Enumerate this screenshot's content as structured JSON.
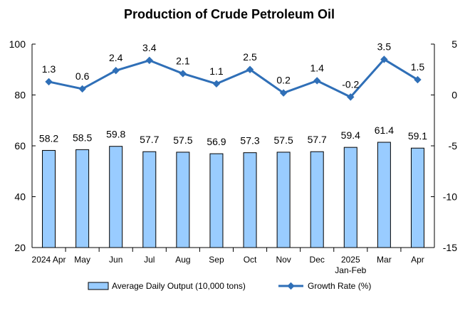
{
  "chart_data": {
    "type": "bar",
    "title": "Production of Crude Petroleum Oil",
    "categories": [
      [
        "2024 Apr"
      ],
      [
        "May"
      ],
      [
        "Jun"
      ],
      [
        "Jul"
      ],
      [
        "Aug"
      ],
      [
        "Sep"
      ],
      [
        "Oct"
      ],
      [
        "Nov"
      ],
      [
        "Dec"
      ],
      [
        "2025",
        "Jan-Feb"
      ],
      [
        "Mar"
      ],
      [
        "Apr"
      ]
    ],
    "series": [
      {
        "name": "Average Daily Output (10,000 tons)",
        "type": "bar",
        "axis": "left",
        "values": [
          58.2,
          58.5,
          59.8,
          57.7,
          57.5,
          56.9,
          57.3,
          57.5,
          57.7,
          59.4,
          61.4,
          59.1
        ],
        "color": "#99ccff"
      },
      {
        "name": "Growth Rate (%)",
        "type": "line",
        "axis": "right",
        "values": [
          1.3,
          0.6,
          2.4,
          3.4,
          2.1,
          1.1,
          2.5,
          0.2,
          1.4,
          -0.2,
          3.5,
          1.5
        ],
        "color": "#2f6fb7"
      }
    ],
    "y_left": {
      "ylim": [
        20,
        100
      ],
      "ticks": [
        20,
        40,
        60,
        80,
        100
      ]
    },
    "y_right": {
      "ylim": [
        -15,
        5
      ],
      "ticks": [
        -15,
        -10,
        -5,
        0,
        5
      ]
    },
    "legend": {
      "position": "bottom"
    },
    "grid": false
  }
}
